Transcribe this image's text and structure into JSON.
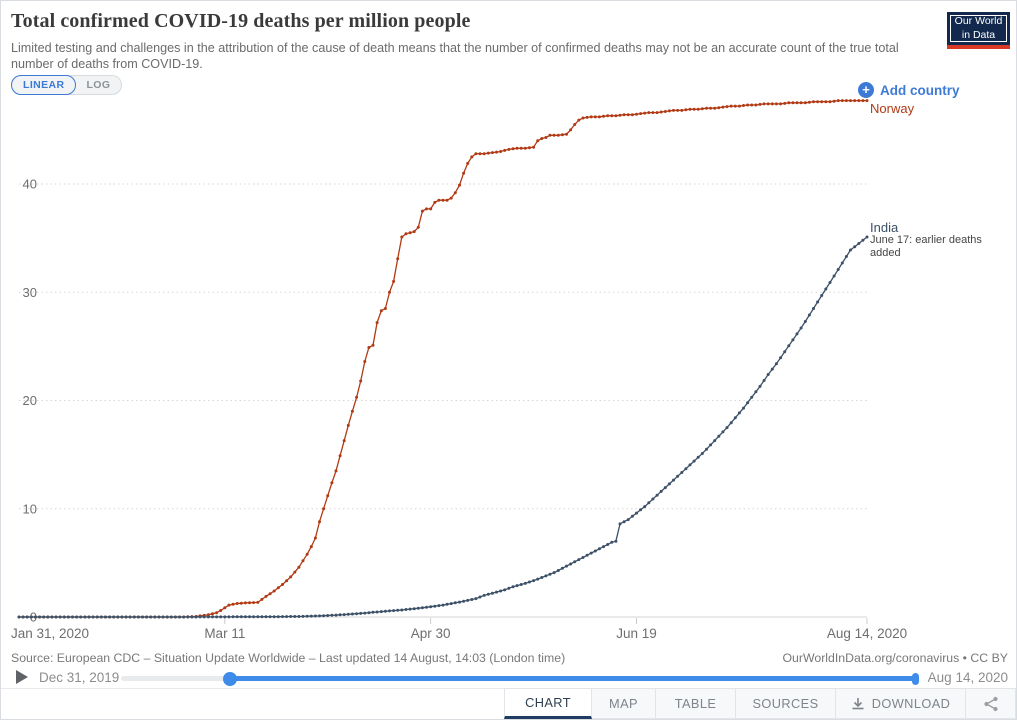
{
  "header": {
    "title": "Total confirmed COVID-19 deaths per million people",
    "subtitle": "Limited testing and challenges in the attribution of the cause of death means that the number of confirmed deaths may not be an accurate count of the true total number of deaths from COVID-19.",
    "logo": {
      "line1": "Our World",
      "line2": "in Data"
    },
    "scale_toggle": {
      "linear": "LINEAR",
      "log": "LOG",
      "active": "LINEAR"
    }
  },
  "controls": {
    "add_country": "Add country"
  },
  "chart_data": {
    "type": "line",
    "title": "Total confirmed COVID-19 deaths per million people",
    "xlabel": "",
    "ylabel": "",
    "grid": "horizontal-dotted",
    "legend_position": "end-of-line-labels",
    "x_axis": {
      "range_days": [
        0,
        206
      ],
      "ticks": [
        {
          "label": "Jan 31, 2020",
          "day": 10
        },
        {
          "label": "Mar 11",
          "day": 50
        },
        {
          "label": "Apr 30",
          "day": 100
        },
        {
          "label": "Jun 19",
          "day": 150
        },
        {
          "label": "Aug 14, 2020",
          "day": 206
        }
      ]
    },
    "y_axis": {
      "ticks": [
        0,
        10,
        20,
        30,
        40
      ],
      "range": [
        0,
        48
      ]
    },
    "series": [
      {
        "name": "Norway",
        "color": "#b13a14",
        "points": [
          [
            0,
            0
          ],
          [
            10,
            0
          ],
          [
            20,
            0
          ],
          [
            30,
            0
          ],
          [
            40,
            0
          ],
          [
            43,
            0.05
          ],
          [
            46,
            0.2
          ],
          [
            48,
            0.4
          ],
          [
            49,
            0.6
          ],
          [
            51,
            1.1
          ],
          [
            53,
            1.25
          ],
          [
            55,
            1.3
          ],
          [
            58,
            1.35
          ],
          [
            60,
            1.9
          ],
          [
            62,
            2.4
          ],
          [
            64,
            3.0
          ],
          [
            66,
            3.7
          ],
          [
            68,
            4.6
          ],
          [
            69,
            5.2
          ],
          [
            70,
            5.8
          ],
          [
            71,
            6.5
          ],
          [
            72,
            7.3
          ],
          [
            73,
            8.8
          ],
          [
            74,
            10.0
          ],
          [
            75,
            11.2
          ],
          [
            76,
            12.4
          ],
          [
            77,
            13.5
          ],
          [
            78,
            14.9
          ],
          [
            79,
            16.3
          ],
          [
            80,
            17.7
          ],
          [
            81,
            19.0
          ],
          [
            82,
            20.3
          ],
          [
            83,
            21.8
          ],
          [
            84,
            23.6
          ],
          [
            85,
            24.9
          ],
          [
            86,
            25.1
          ],
          [
            87,
            27.2
          ],
          [
            88,
            28.3
          ],
          [
            89,
            28.5
          ],
          [
            90,
            30.0
          ],
          [
            91,
            31.0
          ],
          [
            92,
            33.1
          ],
          [
            93,
            35.1
          ],
          [
            94,
            35.4
          ],
          [
            95,
            35.5
          ],
          [
            96,
            35.6
          ],
          [
            97,
            36.0
          ],
          [
            98,
            37.5
          ],
          [
            99,
            37.7
          ],
          [
            100,
            37.7
          ],
          [
            101,
            38.3
          ],
          [
            102,
            38.5
          ],
          [
            104,
            38.5
          ],
          [
            105,
            38.7
          ],
          [
            106,
            39.2
          ],
          [
            107,
            39.9
          ],
          [
            108,
            41.0
          ],
          [
            109,
            41.9
          ],
          [
            110,
            42.5
          ],
          [
            111,
            42.8
          ],
          [
            113,
            42.8
          ],
          [
            115,
            42.9
          ],
          [
            117,
            43.0
          ],
          [
            119,
            43.2
          ],
          [
            121,
            43.3
          ],
          [
            123,
            43.3
          ],
          [
            125,
            43.4
          ],
          [
            126,
            44.0
          ],
          [
            127,
            44.2
          ],
          [
            128,
            44.3
          ],
          [
            129,
            44.5
          ],
          [
            131,
            44.5
          ],
          [
            133,
            44.6
          ],
          [
            134,
            45.0
          ],
          [
            135,
            45.5
          ],
          [
            136,
            45.9
          ],
          [
            137,
            46.1
          ],
          [
            139,
            46.2
          ],
          [
            141,
            46.2
          ],
          [
            143,
            46.3
          ],
          [
            145,
            46.3
          ],
          [
            147,
            46.4
          ],
          [
            149,
            46.4
          ],
          [
            151,
            46.5
          ],
          [
            153,
            46.6
          ],
          [
            155,
            46.6
          ],
          [
            157,
            46.7
          ],
          [
            159,
            46.8
          ],
          [
            161,
            46.8
          ],
          [
            163,
            46.9
          ],
          [
            165,
            46.9
          ],
          [
            167,
            47.0
          ],
          [
            169,
            47.0
          ],
          [
            171,
            47.1
          ],
          [
            173,
            47.2
          ],
          [
            175,
            47.2
          ],
          [
            177,
            47.3
          ],
          [
            179,
            47.3
          ],
          [
            181,
            47.4
          ],
          [
            183,
            47.4
          ],
          [
            185,
            47.4
          ],
          [
            187,
            47.5
          ],
          [
            189,
            47.5
          ],
          [
            191,
            47.5
          ],
          [
            193,
            47.6
          ],
          [
            195,
            47.6
          ],
          [
            197,
            47.6
          ],
          [
            199,
            47.7
          ],
          [
            202,
            47.7
          ],
          [
            206,
            47.7
          ]
        ]
      },
      {
        "name": "India",
        "color": "#3c5067",
        "annotation": "June 17: earlier deaths added",
        "points": [
          [
            0,
            0
          ],
          [
            10,
            0
          ],
          [
            20,
            0
          ],
          [
            30,
            0
          ],
          [
            40,
            0
          ],
          [
            48,
            0.01
          ],
          [
            58,
            0.02
          ],
          [
            63,
            0.03
          ],
          [
            68,
            0.05
          ],
          [
            73,
            0.1
          ],
          [
            78,
            0.2
          ],
          [
            83,
            0.33
          ],
          [
            88,
            0.5
          ],
          [
            93,
            0.65
          ],
          [
            98,
            0.85
          ],
          [
            103,
            1.1
          ],
          [
            108,
            1.45
          ],
          [
            111,
            1.7
          ],
          [
            113,
            2.0
          ],
          [
            116,
            2.3
          ],
          [
            118,
            2.5
          ],
          [
            120,
            2.8
          ],
          [
            123,
            3.1
          ],
          [
            126,
            3.5
          ],
          [
            128,
            3.8
          ],
          [
            130,
            4.1
          ],
          [
            132,
            4.5
          ],
          [
            134,
            4.9
          ],
          [
            136,
            5.3
          ],
          [
            138,
            5.7
          ],
          [
            140,
            6.1
          ],
          [
            142,
            6.5
          ],
          [
            144,
            6.9
          ],
          [
            145,
            7.0
          ],
          [
            146,
            8.6
          ],
          [
            148,
            9.0
          ],
          [
            150,
            9.6
          ],
          [
            152,
            10.2
          ],
          [
            154,
            10.9
          ],
          [
            156,
            11.6
          ],
          [
            158,
            12.3
          ],
          [
            160,
            13.0
          ],
          [
            162,
            13.7
          ],
          [
            164,
            14.4
          ],
          [
            166,
            15.1
          ],
          [
            168,
            15.9
          ],
          [
            170,
            16.7
          ],
          [
            172,
            17.5
          ],
          [
            174,
            18.4
          ],
          [
            176,
            19.3
          ],
          [
            178,
            20.3
          ],
          [
            180,
            21.3
          ],
          [
            182,
            22.4
          ],
          [
            184,
            23.4
          ],
          [
            186,
            24.5
          ],
          [
            188,
            25.6
          ],
          [
            190,
            26.7
          ],
          [
            192,
            27.9
          ],
          [
            194,
            29.1
          ],
          [
            196,
            30.3
          ],
          [
            198,
            31.5
          ],
          [
            200,
            32.7
          ],
          [
            202,
            33.9
          ],
          [
            204,
            34.5
          ],
          [
            206,
            35.1
          ]
        ]
      }
    ]
  },
  "footer": {
    "source": "Source: European CDC – Situation Update Worldwide – Last updated 14 August, 14:03 (London time)",
    "attribution": "OurWorldInData.org/coronavirus • CC BY",
    "timeline": {
      "start": "Dec 31, 2019",
      "end": "Aug 14, 2020"
    }
  },
  "tabs": [
    {
      "label": "CHART",
      "active": true
    },
    {
      "label": "MAP"
    },
    {
      "label": "TABLE"
    },
    {
      "label": "SOURCES"
    },
    {
      "label": "DOWNLOAD"
    }
  ],
  "colors": {
    "accent_blue": "#3d7ad6",
    "slider_blue": "#3f8bea",
    "active_tab_underline": "#1d3d63",
    "logo_bg": "#12294d",
    "logo_red": "#d93a26"
  }
}
